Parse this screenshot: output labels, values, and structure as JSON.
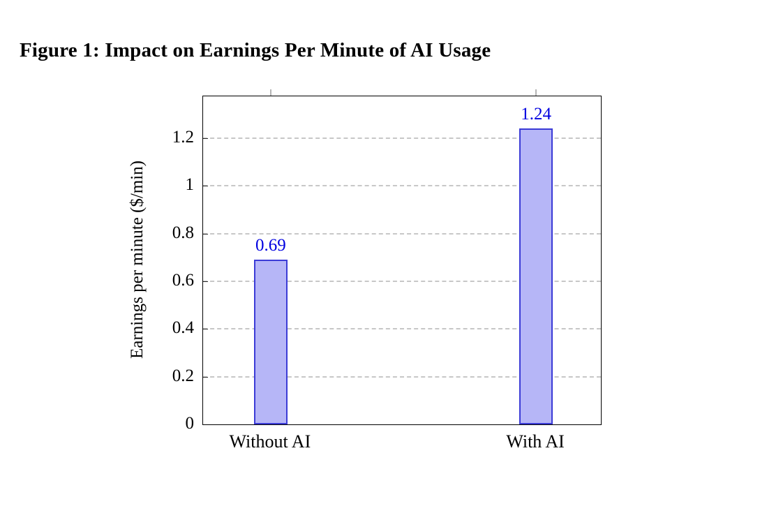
{
  "chart_data": {
    "type": "bar",
    "title": "Figure 1: Impact on Earnings Per Minute of AI Usage",
    "categories": [
      "Without AI",
      "With AI"
    ],
    "values": [
      0.69,
      1.24
    ],
    "value_labels": [
      "0.69",
      "1.24"
    ],
    "xlabel": "",
    "ylabel": "Earnings per minute ($/min)",
    "ylim": [
      0,
      1.375
    ],
    "yticks": [
      0,
      0.2,
      0.4,
      0.6,
      0.8,
      1,
      1.2
    ],
    "ytick_labels": [
      "0",
      "0.2",
      "0.4",
      "0.6",
      "0.8",
      "1",
      "1.2"
    ],
    "grid": "horizontal dashed",
    "legend": "none",
    "colors": {
      "bar_fill": "#b6b6f7",
      "bar_border": "#3b3bd6",
      "value_label": "#0000e0",
      "grid": "#c7c7c7",
      "axis": "#000000",
      "top_tick": "#b5b5b5"
    }
  }
}
